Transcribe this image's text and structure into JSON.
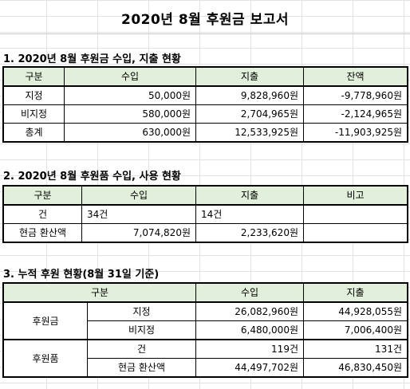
{
  "title": "2020년 8월 후원금 보고서",
  "section1": {
    "heading": "1. 2020년 8월 후원금 수입, 지출 현황",
    "headers": [
      "구분",
      "수입",
      "지출",
      "잔액"
    ],
    "rows": [
      [
        "지정",
        "50,000원",
        "9,828,960원",
        "-9,778,960원"
      ],
      [
        "비지정",
        "580,000원",
        "2,704,965원",
        "-2,124,965원"
      ],
      [
        "총계",
        "630,000원",
        "12,533,925원",
        "-11,903,925원"
      ]
    ]
  },
  "section2": {
    "heading": "2. 2020년 8월 후원품 수입, 사용 현황",
    "headers": [
      "구분",
      "수입",
      "지출",
      "비고"
    ],
    "rows": [
      [
        "건",
        "34건",
        "14건",
        ""
      ],
      [
        "현금 환산액",
        "7,074,820원",
        "2,233,620원",
        ""
      ]
    ]
  },
  "section3": {
    "heading": "3. 누적 후원 현황(8월 31일 기준)",
    "headers": [
      "구분",
      "수입",
      "지출"
    ],
    "groups": [
      {
        "label": "후원금",
        "rows": [
          [
            "지정",
            "26,082,960원",
            "44,928,055원"
          ],
          [
            "비지정",
            "6,480,000원",
            "7,006,400원"
          ]
        ]
      },
      {
        "label": "후원품",
        "rows": [
          [
            "건",
            "119건",
            "131건"
          ],
          [
            "현금 환산액",
            "44,497,702원",
            "46,830,450원"
          ]
        ]
      }
    ]
  }
}
